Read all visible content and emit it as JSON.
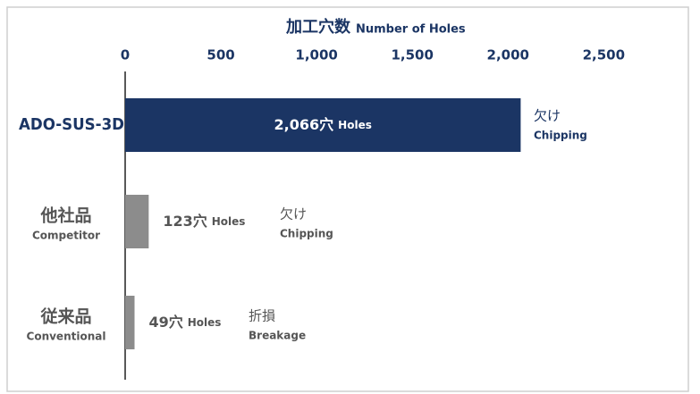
{
  "chart_data": {
    "type": "barh",
    "title": "加工穴数",
    "title_en": "Number of Holes",
    "categories": [
      {
        "label": "ADO-SUS-3D"
      },
      {
        "label": "他社品",
        "sublabel": "Competitor"
      },
      {
        "label": "従来品",
        "sublabel": "Conventional"
      }
    ],
    "values": [
      2066,
      123,
      49
    ],
    "value_labels": [
      "2,066穴",
      "123穴",
      "49穴"
    ],
    "unit_label": "Holes",
    "colors": [
      "#1b3564",
      "#8c8c8c",
      "#8c8c8c"
    ],
    "notes": [
      {
        "ja": "欠け",
        "en": "Chipping"
      },
      {
        "ja": "欠け",
        "en": "Chipping"
      },
      {
        "ja": "折損",
        "en": "Breakage"
      }
    ],
    "xlim": [
      0,
      2900
    ],
    "xticks": [
      0,
      500,
      {
        "value": 1000,
        "label": "1,000"
      },
      {
        "value": 1500,
        "label": "1,500"
      },
      {
        "value": 2000,
        "label": "2,000"
      },
      {
        "value": 2500,
        "label": "2,500"
      }
    ]
  }
}
